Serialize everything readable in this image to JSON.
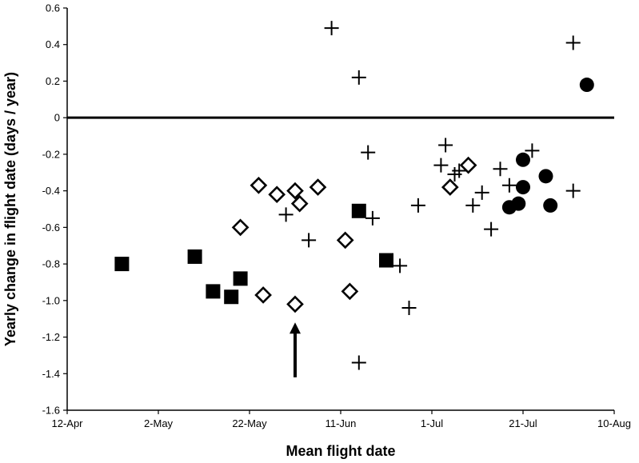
{
  "chart_data": {
    "type": "scatter",
    "xlabel": "Mean flight date",
    "ylabel": "Yearly change in flight date (days / year)",
    "x_ticks": [
      {
        "date": "2005-04-12",
        "label": "12-Apr"
      },
      {
        "date": "2005-05-02",
        "label": "2-May"
      },
      {
        "date": "2005-05-22",
        "label": "22-May"
      },
      {
        "date": "2005-06-11",
        "label": "11-Jun"
      },
      {
        "date": "2005-07-01",
        "label": "1-Jul"
      },
      {
        "date": "2005-07-21",
        "label": "21-Jul"
      },
      {
        "date": "2005-08-10",
        "label": "10-Aug"
      }
    ],
    "xlim": [
      "2005-04-12",
      "2005-08-10"
    ],
    "ylim": [
      -1.6,
      0.6
    ],
    "y_ticks": [
      {
        "value": 0.6,
        "label": "0.6"
      },
      {
        "value": 0.4,
        "label": "0.4"
      },
      {
        "value": 0.2,
        "label": "0.2"
      },
      {
        "value": 0,
        "label": "0"
      },
      {
        "value": -0.2,
        "label": "-0.2"
      },
      {
        "value": -0.4,
        "label": "-0.4"
      },
      {
        "value": -0.6,
        "label": "-0.6"
      },
      {
        "value": -0.8,
        "label": "-0.8"
      },
      {
        "value": -1.0,
        "label": "-1.0"
      },
      {
        "value": -1.2,
        "label": "-1.2"
      },
      {
        "value": -1.4,
        "label": "-1.4"
      },
      {
        "value": -1.6,
        "label": "-1.6"
      }
    ],
    "reference_line": {
      "y": 0
    },
    "arrow": {
      "x": "2005-06-01",
      "y_from": -1.42,
      "y_to": -1.12
    },
    "series": [
      {
        "marker": "filled-square",
        "points": [
          {
            "x": "2005-04-24",
            "y": -0.8
          },
          {
            "x": "2005-05-10",
            "y": -0.76
          },
          {
            "x": "2005-05-14",
            "y": -0.95
          },
          {
            "x": "2005-05-18",
            "y": -0.98
          },
          {
            "x": "2005-05-20",
            "y": -0.88
          },
          {
            "x": "2005-06-15",
            "y": -0.51
          },
          {
            "x": "2005-06-21",
            "y": -0.78
          }
        ]
      },
      {
        "marker": "open-diamond",
        "points": [
          {
            "x": "2005-05-20",
            "y": -0.6
          },
          {
            "x": "2005-05-24",
            "y": -0.37
          },
          {
            "x": "2005-05-25",
            "y": -0.97
          },
          {
            "x": "2005-05-28",
            "y": -0.42
          },
          {
            "x": "2005-06-01",
            "y": -0.4
          },
          {
            "x": "2005-06-02",
            "y": -0.47
          },
          {
            "x": "2005-06-01",
            "y": -1.02
          },
          {
            "x": "2005-06-06",
            "y": -0.38
          },
          {
            "x": "2005-06-12",
            "y": -0.67
          },
          {
            "x": "2005-06-13",
            "y": -0.95
          },
          {
            "x": "2005-07-05",
            "y": -0.38
          },
          {
            "x": "2005-07-09",
            "y": -0.26
          }
        ]
      },
      {
        "marker": "plus",
        "points": [
          {
            "x": "2005-06-09",
            "y": 0.49
          },
          {
            "x": "2005-06-15",
            "y": 0.22
          },
          {
            "x": "2005-06-17",
            "y": -0.19
          },
          {
            "x": "2005-05-30",
            "y": -0.53
          },
          {
            "x": "2005-06-04",
            "y": -0.67
          },
          {
            "x": "2005-06-18",
            "y": -0.55
          },
          {
            "x": "2005-06-24",
            "y": -0.81
          },
          {
            "x": "2005-06-26",
            "y": -1.04
          },
          {
            "x": "2005-06-15",
            "y": -1.34
          },
          {
            "x": "2005-06-28",
            "y": -0.48
          },
          {
            "x": "2005-07-04",
            "y": -0.15
          },
          {
            "x": "2005-07-03",
            "y": -0.26
          },
          {
            "x": "2005-07-06",
            "y": -0.31
          },
          {
            "x": "2005-07-07",
            "y": -0.29
          },
          {
            "x": "2005-07-10",
            "y": -0.48
          },
          {
            "x": "2005-07-12",
            "y": -0.41
          },
          {
            "x": "2005-07-14",
            "y": -0.61
          },
          {
            "x": "2005-07-16",
            "y": -0.28
          },
          {
            "x": "2005-07-18",
            "y": -0.37
          },
          {
            "x": "2005-07-23",
            "y": -0.18
          },
          {
            "x": "2005-08-01",
            "y": 0.41
          },
          {
            "x": "2005-08-01",
            "y": -0.4
          }
        ]
      },
      {
        "marker": "filled-circle",
        "points": [
          {
            "x": "2005-08-04",
            "y": 0.18
          },
          {
            "x": "2005-07-21",
            "y": -0.23
          },
          {
            "x": "2005-07-26",
            "y": -0.32
          },
          {
            "x": "2005-07-21",
            "y": -0.38
          },
          {
            "x": "2005-07-18",
            "y": -0.49
          },
          {
            "x": "2005-07-20",
            "y": -0.47
          },
          {
            "x": "2005-07-27",
            "y": -0.48
          }
        ]
      }
    ]
  }
}
